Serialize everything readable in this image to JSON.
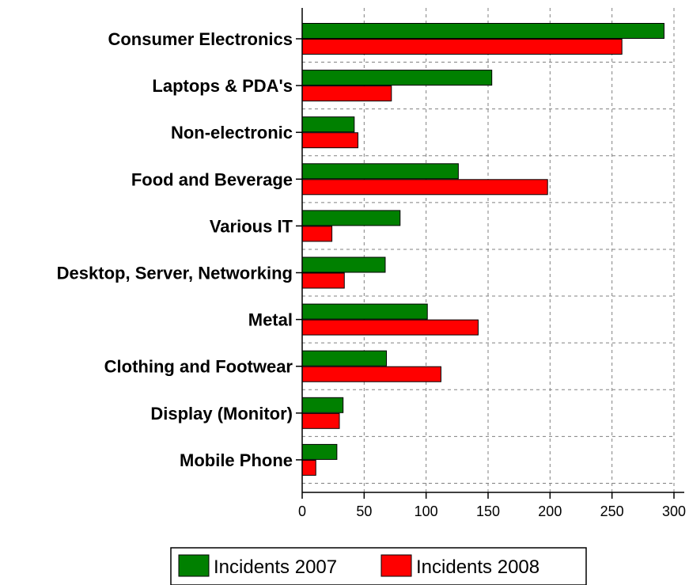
{
  "chart_data": {
    "type": "bar",
    "orientation": "horizontal",
    "categories": [
      "Consumer Electronics",
      "Laptops & PDA's",
      "Non-electronic",
      "Food and Beverage",
      "Various IT",
      "Desktop, Server, Networking",
      "Metal",
      "Clothing and Footwear",
      "Display (Monitor)",
      "Mobile Phone"
    ],
    "series": [
      {
        "name": "Incidents 2007",
        "color": "#008000",
        "values": [
          292,
          153,
          42,
          126,
          79,
          67,
          101,
          68,
          33,
          28
        ]
      },
      {
        "name": "Incidents 2008",
        "color": "#ff0000",
        "values": [
          258,
          72,
          45,
          198,
          24,
          34,
          142,
          112,
          30,
          11
        ]
      }
    ],
    "xlim": [
      0,
      300
    ],
    "xticks": [
      0,
      50,
      100,
      150,
      200,
      250,
      300
    ],
    "grid": true,
    "legend_position": "bottom"
  }
}
